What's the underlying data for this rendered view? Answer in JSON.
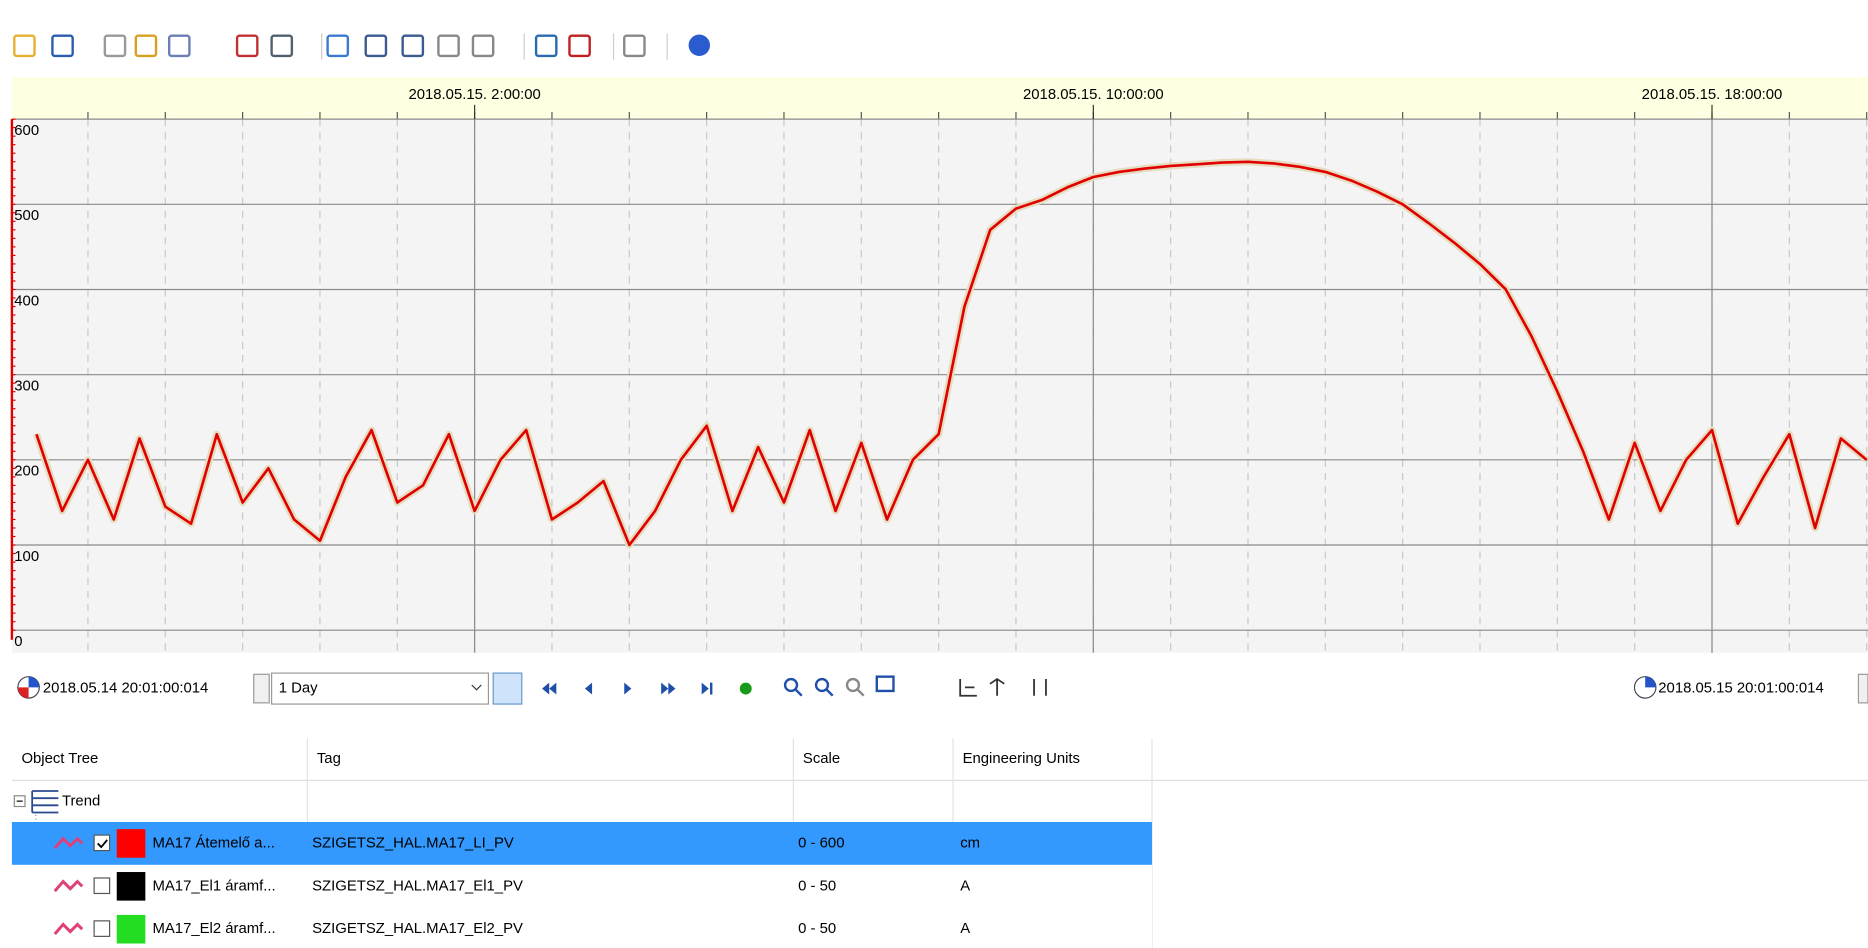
{
  "chart_data": {
    "type": "line",
    "x": [
      "2018.05.14. 20:20:00",
      "2018.05.14. 20:40:00",
      "2018.05.14. 21:00:00",
      "2018.05.14. 21:20:00",
      "2018.05.14. 21:40:00",
      "2018.05.14. 22:00:00",
      "2018.05.14. 22:20:00",
      "2018.05.14. 22:40:00",
      "2018.05.14. 23:00:00",
      "2018.05.14. 23:20:00",
      "2018.05.14. 23:40:00",
      "2018.05.15. 0:00:00",
      "2018.05.15. 0:20:00",
      "2018.05.15. 0:40:00",
      "2018.05.15. 1:00:00",
      "2018.05.15. 1:20:00",
      "2018.05.15. 1:40:00",
      "2018.05.15. 2:00:00",
      "2018.05.15. 2:20:00",
      "2018.05.15. 2:40:00",
      "2018.05.15. 3:00:00",
      "2018.05.15. 3:20:00",
      "2018.05.15. 3:40:00",
      "2018.05.15. 4:00:00",
      "2018.05.15. 4:20:00",
      "2018.05.15. 4:40:00",
      "2018.05.15. 5:00:00",
      "2018.05.15. 5:20:00",
      "2018.05.15. 5:40:00",
      "2018.05.15. 6:00:00",
      "2018.05.15. 6:20:00",
      "2018.05.15. 6:40:00",
      "2018.05.15. 7:00:00",
      "2018.05.15. 7:20:00",
      "2018.05.15. 7:40:00",
      "2018.05.15. 8:00:00",
      "2018.05.15. 8:20:00",
      "2018.05.15. 8:40:00",
      "2018.05.15. 9:00:00",
      "2018.05.15. 9:20:00",
      "2018.05.15. 9:40:00",
      "2018.05.15. 10:00:00",
      "2018.05.15. 10:20:00",
      "2018.05.15. 10:40:00",
      "2018.05.15. 11:00:00",
      "2018.05.15. 11:20:00",
      "2018.05.15. 11:40:00",
      "2018.05.15. 12:00:00",
      "2018.05.15. 12:20:00",
      "2018.05.15. 12:40:00",
      "2018.05.15. 13:00:00",
      "2018.05.15. 13:20:00",
      "2018.05.15. 13:40:00",
      "2018.05.15. 14:00:00",
      "2018.05.15. 14:20:00",
      "2018.05.15. 14:40:00",
      "2018.05.15. 15:00:00",
      "2018.05.15. 15:20:00",
      "2018.05.15. 15:40:00",
      "2018.05.15. 16:00:00",
      "2018.05.15. 16:20:00",
      "2018.05.15. 16:40:00",
      "2018.05.15. 17:00:00",
      "2018.05.15. 17:20:00",
      "2018.05.15. 17:40:00",
      "2018.05.15. 18:00:00",
      "2018.05.15. 18:20:00",
      "2018.05.15. 18:40:00",
      "2018.05.15. 19:00:00",
      "2018.05.15. 19:20:00",
      "2018.05.15. 19:40:00",
      "2018.05.15. 20:00:00"
    ],
    "series": [
      {
        "color": "#e00000",
        "values": [
          230,
          140,
          200,
          130,
          225,
          145,
          125,
          230,
          150,
          190,
          130,
          105,
          180,
          235,
          150,
          170,
          230,
          140,
          200,
          235,
          130,
          150,
          175,
          100,
          140,
          200,
          240,
          140,
          215,
          150,
          235,
          140,
          220,
          130,
          200,
          230,
          380,
          470,
          495,
          505,
          520,
          532,
          538,
          542,
          545,
          547,
          549,
          550,
          548,
          544,
          538,
          528,
          515,
          500,
          478,
          455,
          430,
          400,
          345,
          280,
          210,
          130,
          220,
          140,
          200,
          235,
          125,
          180,
          230,
          120,
          225,
          200
        ]
      }
    ],
    "xlim": [
      "2018.05.14 20:01:00:014",
      "2018.05.15 20:01:00:014"
    ],
    "xticks": [
      "2018.05.15. 2:00:00",
      "2018.05.15. 10:00:00",
      "2018.05.15. 18:00:00"
    ],
    "ylim": [
      0,
      600
    ],
    "yticks": [
      0,
      100,
      200,
      300,
      400,
      500,
      600
    ],
    "axis_color": "#e00000",
    "grid": true
  },
  "controls": {
    "interval": "1 Day"
  },
  "table": {
    "columns": [
      "Object Tree",
      "Tag",
      "Scale",
      "Engineering Units"
    ],
    "root": "Trend",
    "rows": [
      {
        "name": "MA17 Átemelő a...",
        "tag": "SZIGETSZ_HAL.MA17_LI_PV",
        "scale": "0 - 600",
        "units": "cm",
        "color": "#ff0000"
      },
      {
        "name": "MA17_El1 áramf...",
        "tag": "SZIGETSZ_HAL.MA17_El1_PV",
        "scale": "0 - 50",
        "units": "A",
        "color": "#000000"
      },
      {
        "name": "MA17_El2 áramf...",
        "tag": "SZIGETSZ_HAL.MA17_El2_PV",
        "scale": "0 - 50",
        "units": "A",
        "color": "#22dd22"
      }
    ]
  }
}
